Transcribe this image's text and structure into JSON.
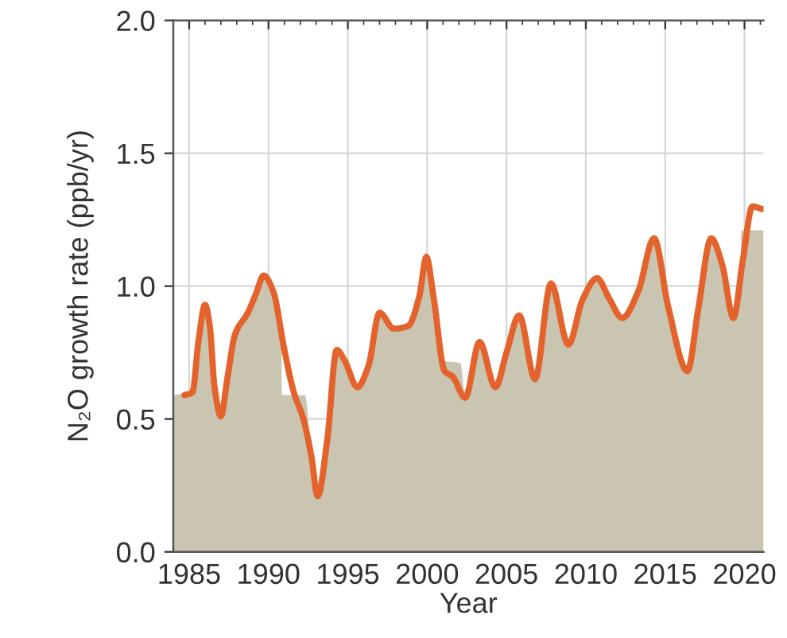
{
  "chart_data": {
    "type": "line",
    "xlabel": "Year",
    "ylabel": "N₂O growth rate (ppb/yr)",
    "xlim": [
      1984,
      2021.2
    ],
    "ylim": [
      0,
      2
    ],
    "xticks": [
      1985,
      {
        "value": 1986,
        "label": null
      },
      {
        "value": 1987,
        "label": null
      },
      {
        "value": 1988,
        "label": null
      },
      {
        "value": 1989,
        "label": null
      },
      1990,
      {
        "value": 1991,
        "label": null
      },
      {
        "value": 1992,
        "label": null
      },
      {
        "value": 1993,
        "label": null
      },
      {
        "value": 1994,
        "label": null
      },
      1995,
      {
        "value": 1996,
        "label": null
      },
      {
        "value": 1997,
        "label": null
      },
      {
        "value": 1998,
        "label": null
      },
      {
        "value": 1999,
        "label": null
      },
      2000,
      {
        "value": 2001,
        "label": null
      },
      {
        "value": 2002,
        "label": null
      },
      {
        "value": 2003,
        "label": null
      },
      {
        "value": 2004,
        "label": null
      },
      2005,
      {
        "value": 2006,
        "label": null
      },
      {
        "value": 2007,
        "label": null
      },
      {
        "value": 2008,
        "label": null
      },
      {
        "value": 2009,
        "label": null
      },
      2010,
      {
        "value": 2011,
        "label": null
      },
      {
        "value": 2012,
        "label": null
      },
      {
        "value": 2013,
        "label": null
      },
      {
        "value": 2014,
        "label": null
      },
      2015,
      {
        "value": 2016,
        "label": null
      },
      {
        "value": 2017,
        "label": null
      },
      {
        "value": 2018,
        "label": null
      },
      {
        "value": 2019,
        "label": null
      },
      2020,
      {
        "value": 2021,
        "label": null
      }
    ],
    "yticks": [
      {
        "value": 0,
        "label": "0.0"
      },
      {
        "value": 0.5,
        "label": "0.5"
      },
      {
        "value": 1,
        "label": "1.0"
      },
      {
        "value": 1.5,
        "label": "1.5"
      },
      {
        "value": 2,
        "label": "2.0"
      }
    ],
    "grid": true,
    "series": [
      {
        "type": "area",
        "color": "#c9c5b0",
        "x": [
          1984.0,
          1985.2,
          1985.6,
          1986.0,
          1986.3,
          1986.6,
          1987.0,
          1987.4,
          1987.9,
          1988.7,
          1989.2,
          1989.7,
          1990.3,
          1990.8,
          1990.85,
          1992.3,
          1992.7,
          1993.1,
          1993.7,
          1994.3,
          1994.8,
          1995.6,
          1996.3,
          1997.0,
          1997.9,
          1998.8,
          1999.5,
          1999.95,
          2000.4,
          2000.9,
          2002.1,
          2002.4,
          2003.3,
          2004.3,
          2005.0,
          2005.8,
          2006.8,
          2007.8,
          2008.9,
          2009.8,
          2010.7,
          2011.5,
          2012.3,
          2013.3,
          2014.3,
          2015.2,
          2016.4,
          2017.1,
          2017.9,
          2018.6,
          2019.3,
          2019.75,
          2019.8,
          2021.2
        ],
        "values": [
          0.59,
          0.6,
          0.8,
          0.93,
          0.85,
          0.62,
          0.51,
          0.65,
          0.82,
          0.9,
          0.97,
          1.04,
          0.98,
          0.82,
          0.59,
          0.59,
          0.36,
          0.21,
          0.42,
          0.76,
          0.72,
          0.62,
          0.7,
          0.9,
          0.84,
          0.85,
          0.96,
          1.11,
          0.96,
          0.72,
          0.71,
          0.58,
          0.79,
          0.62,
          0.75,
          0.89,
          0.65,
          1.01,
          0.78,
          0.95,
          1.03,
          0.95,
          0.88,
          0.98,
          1.18,
          0.92,
          0.68,
          0.92,
          1.18,
          1.08,
          0.88,
          1.05,
          1.21,
          1.21
        ]
      },
      {
        "color": "#e4632d",
        "x": [
          1984.7,
          1985.2,
          1985.6,
          1986.0,
          1986.3,
          1986.6,
          1987.0,
          1987.4,
          1987.9,
          1988.7,
          1989.2,
          1989.7,
          1990.3,
          1991.0,
          1991.6,
          1992.2,
          1992.7,
          1993.1,
          1993.7,
          1994.3,
          1994.8,
          1995.6,
          1996.3,
          1997.0,
          1997.9,
          1998.8,
          1999.5,
          1999.95,
          2000.4,
          2001.1,
          2001.6,
          2002.4,
          2003.3,
          2004.3,
          2005.0,
          2005.8,
          2006.8,
          2007.8,
          2008.9,
          2009.8,
          2010.7,
          2011.5,
          2012.3,
          2013.3,
          2014.3,
          2015.2,
          2016.4,
          2017.1,
          2017.9,
          2018.6,
          2019.3,
          2019.9,
          2020.5,
          2021.1
        ],
        "values": [
          0.59,
          0.6,
          0.8,
          0.93,
          0.85,
          0.62,
          0.51,
          0.65,
          0.82,
          0.9,
          0.97,
          1.04,
          0.98,
          0.76,
          0.6,
          0.5,
          0.36,
          0.21,
          0.42,
          0.76,
          0.72,
          0.62,
          0.7,
          0.9,
          0.84,
          0.85,
          0.96,
          1.11,
          0.96,
          0.68,
          0.66,
          0.58,
          0.79,
          0.62,
          0.75,
          0.89,
          0.65,
          1.01,
          0.78,
          0.95,
          1.03,
          0.95,
          0.88,
          0.98,
          1.18,
          0.92,
          0.68,
          0.92,
          1.18,
          1.08,
          0.88,
          1.1,
          1.3,
          1.29
        ]
      }
    ]
  }
}
